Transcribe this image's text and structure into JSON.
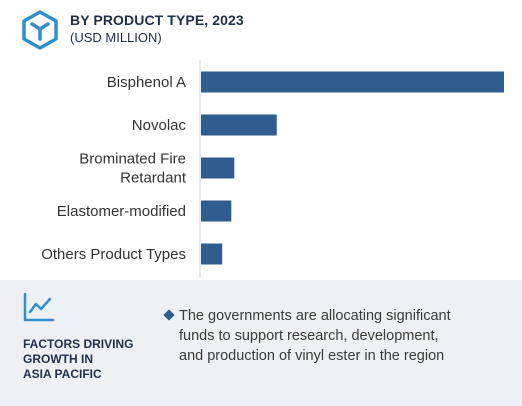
{
  "header": {
    "icon": "hexagon-cube-icon",
    "title": "BY PRODUCT TYPE, 2023",
    "subtitle": "(USD MILLION)"
  },
  "chart_data": {
    "type": "bar",
    "orientation": "horizontal",
    "title": "BY PRODUCT TYPE, 2023",
    "subtitle": "(USD MILLION)",
    "categories": [
      [
        "Bisphenol A"
      ],
      [
        "Novolac"
      ],
      [
        "Brominated Fire",
        "Retardant"
      ],
      [
        "Elastomer-modified"
      ],
      [
        "Others Product Types"
      ]
    ],
    "values": [
      100,
      25,
      11,
      10,
      7
    ],
    "xlim": [
      0,
      100
    ],
    "bar_color": "#2f5e8e",
    "axis_color": "#cfd6dd",
    "grid": false,
    "legend": "none"
  },
  "footer": {
    "icon": "trend-line-icon",
    "factors_lines": [
      "FACTORS DRIVING",
      "GROWTH IN",
      "ASIA PACIFIC"
    ],
    "bullet_icon": "diamond-bullet-icon",
    "factor_lines": [
      "The governments are allocating significant",
      "funds to support research, development,",
      "and production of vinyl ester in the region"
    ]
  }
}
